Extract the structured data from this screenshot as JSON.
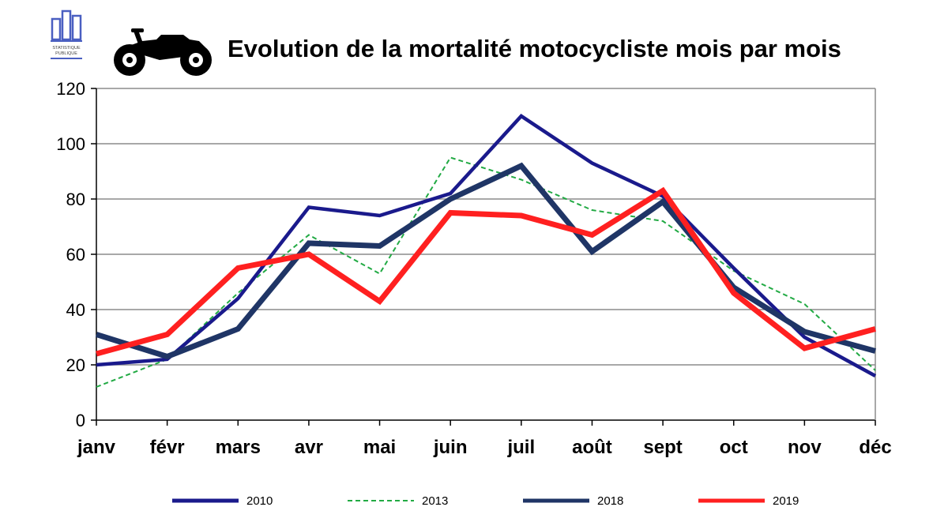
{
  "header": {
    "title": "Evolution de la mortalité motocycliste mois par mois",
    "logo_text": "STATISTIQUE PUBLIQUE"
  },
  "chart_data": {
    "type": "line",
    "title": "Evolution de la mortalité motocycliste mois par mois",
    "xlabel": "",
    "ylabel": "",
    "ylim": [
      0,
      120
    ],
    "yticks": [
      0,
      20,
      40,
      60,
      80,
      100,
      120
    ],
    "grid": true,
    "legend_position": "bottom",
    "categories": [
      "janv",
      "févr",
      "mars",
      "avr",
      "mai",
      "juin",
      "juil",
      "août",
      "sept",
      "oct",
      "nov",
      "déc"
    ],
    "series": [
      {
        "name": "2010",
        "color": "#1a1a8c",
        "style": "solid",
        "weight": "medium",
        "values": [
          20,
          22,
          44,
          77,
          74,
          82,
          110,
          93,
          81,
          55,
          30,
          16
        ]
      },
      {
        "name": "2013",
        "color": "#22aa44",
        "style": "dashed",
        "weight": "thin",
        "values": [
          12,
          22,
          46,
          67,
          53,
          95,
          87,
          76,
          72,
          54,
          42,
          18
        ]
      },
      {
        "name": "2018",
        "color": "#1f3566",
        "style": "solid",
        "weight": "thick",
        "values": [
          31,
          23,
          33,
          64,
          63,
          80,
          92,
          61,
          79,
          48,
          32,
          25
        ]
      },
      {
        "name": "2019",
        "color": "#ff2020",
        "style": "solid",
        "weight": "thick",
        "values": [
          24,
          31,
          55,
          60,
          43,
          75,
          74,
          67,
          83,
          46,
          26,
          33
        ]
      }
    ]
  }
}
